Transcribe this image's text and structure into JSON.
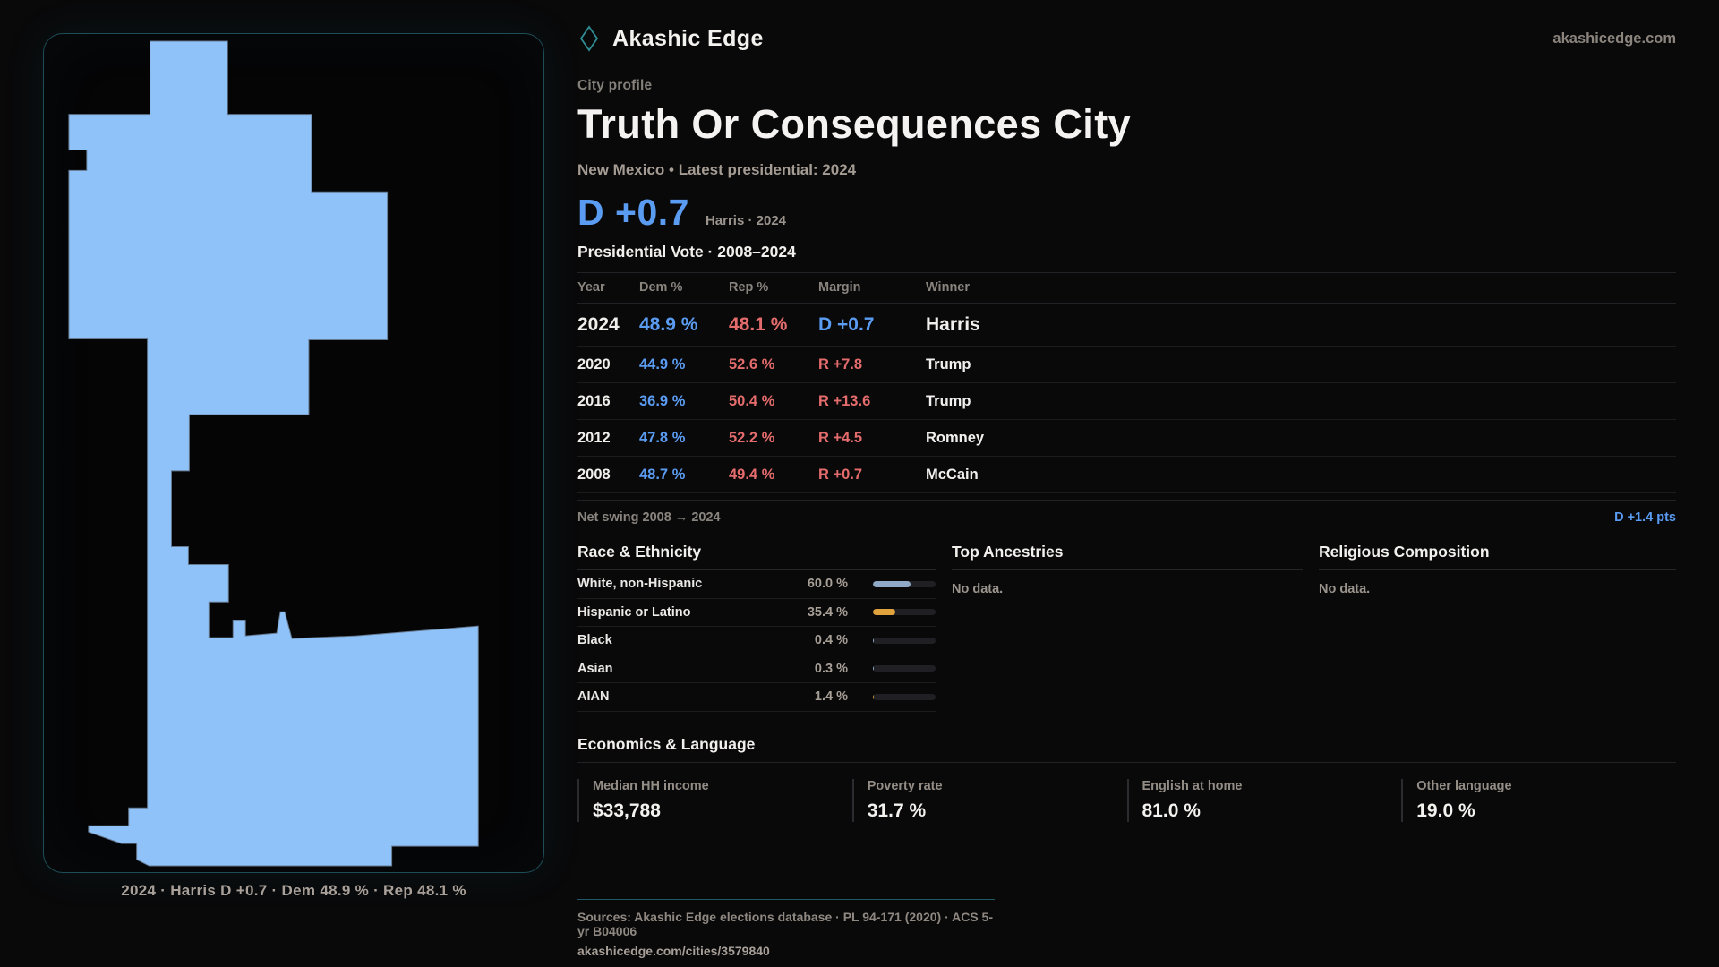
{
  "brand": {
    "name": "Akashic Edge",
    "domain": "akashicedge.com",
    "accent_teal": "#2f8d93"
  },
  "profile": {
    "kicker": "City profile",
    "title": "Truth Or Consequences City",
    "subtitle": "New Mexico • Latest presidential: 2024"
  },
  "headline": {
    "value": "D +0.7",
    "context": "Harris · 2024"
  },
  "vote_table": {
    "title": "Presidential Vote · 2008–2024",
    "columns": [
      "Year",
      "Dem %",
      "Rep %",
      "Margin",
      "Winner"
    ],
    "rows": [
      {
        "year": "2024",
        "dem": "48.9 %",
        "rep": "48.1 %",
        "margin": "D +0.7",
        "party": "D",
        "winner": "Harris"
      },
      {
        "year": "2020",
        "dem": "44.9 %",
        "rep": "52.6 %",
        "margin": "R +7.8",
        "party": "R",
        "winner": "Trump"
      },
      {
        "year": "2016",
        "dem": "36.9 %",
        "rep": "50.4 %",
        "margin": "R +13.6",
        "party": "R",
        "winner": "Trump"
      },
      {
        "year": "2012",
        "dem": "47.8 %",
        "rep": "52.2 %",
        "margin": "R +4.5",
        "party": "R",
        "winner": "Romney"
      },
      {
        "year": "2008",
        "dem": "48.7 %",
        "rep": "49.4 %",
        "margin": "R +0.7",
        "party": "R",
        "winner": "McCain"
      }
    ]
  },
  "net_swing": {
    "label": "Net swing 2008 → 2024",
    "value": "D +1.4 pts"
  },
  "race": {
    "title": "Race & Ethnicity",
    "rows": [
      {
        "label": "White, non-Hispanic",
        "value": "60.0 %",
        "pct": 60.0,
        "color": "#8fa9c7"
      },
      {
        "label": "Hispanic or Latino",
        "value": "35.4 %",
        "pct": 35.4,
        "color": "#e0a23c"
      },
      {
        "label": "Black",
        "value": "0.4 %",
        "pct": 0.4,
        "color": "#8fa9c7"
      },
      {
        "label": "Asian",
        "value": "0.3 %",
        "pct": 0.3,
        "color": "#8fa9c7"
      },
      {
        "label": "AIAN",
        "value": "1.4 %",
        "pct": 1.4,
        "color": "#e0a23c"
      }
    ]
  },
  "ancestries": {
    "title": "Top Ancestries",
    "empty": "No data."
  },
  "religion": {
    "title": "Religious Composition",
    "empty": "No data."
  },
  "economics": {
    "title": "Economics & Language",
    "stats": [
      {
        "label": "Median HH income",
        "value": "$33,788"
      },
      {
        "label": "Poverty rate",
        "value": "31.7 %"
      },
      {
        "label": "English at home",
        "value": "81.0 %"
      },
      {
        "label": "Other language",
        "value": "19.0 %"
      }
    ]
  },
  "map": {
    "caption": "2024 · Harris D +0.7 · Dem 48.9 % · Rep 48.1 %",
    "fill": "#8fc2f8"
  },
  "footer": {
    "sources": "Sources: Akashic Edge elections database · PL 94-171 (2020) · ACS 5-yr B04006",
    "permalink": "akashicedge.com/cities/3579840"
  }
}
